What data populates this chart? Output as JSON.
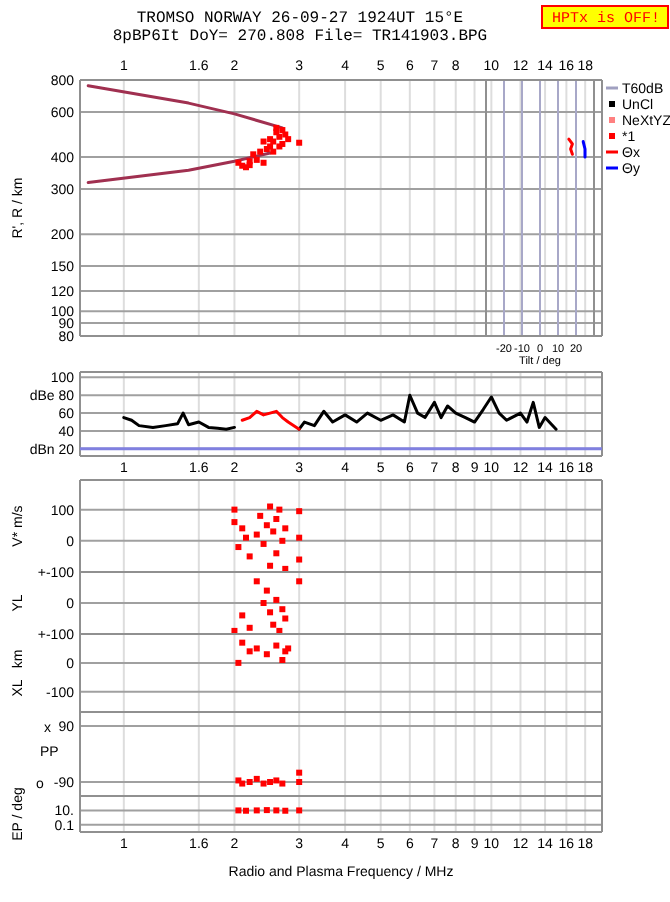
{
  "chart_data": [
    {
      "type": "scatter",
      "title": "TROMSO NORWAY   26-09-27 1924UT 15°E",
      "subtitle": "8pBP6It DoY= 270.808 File= TR141903.BPG",
      "ylabel": "R', R / km",
      "annotations": [
        "HPTx is OFF!"
      ],
      "log": "xy",
      "xlim": [
        0.76,
        20
      ],
      "ylim": [
        80,
        800
      ],
      "xticks": [
        1,
        1.6,
        2,
        3,
        4,
        5,
        6,
        7,
        8,
        {
          "value": 9,
          "label": null
        },
        10,
        12,
        14,
        16,
        18
      ],
      "yticks": [
        800,
        600,
        400,
        300,
        200,
        150,
        120,
        100,
        90,
        80
      ],
      "grid": true,
      "legend": "right",
      "series": [
        {
          "type": "line",
          "color": "#a03050",
          "x": [
            0.8,
            1.5,
            2.0,
            2.7
          ],
          "values": [
            760,
            650,
            590,
            520
          ]
        },
        {
          "type": "line",
          "color": "#a03050",
          "x": [
            0.8,
            1.5,
            2.0,
            2.5
          ],
          "values": [
            318,
            355,
            385,
            415
          ]
        },
        {
          "name": "T60dB",
          "type": "line",
          "color": "#a0a0c0"
        },
        {
          "name": "UnCl",
          "color": "#000000"
        },
        {
          "name": "NeXtYZ",
          "color": "#ff8080"
        },
        {
          "name": "*1",
          "color": "#ff0000",
          "marker": "square",
          "x": [
            2.05,
            2.1,
            2.15,
            2.2,
            2.25,
            2.3,
            2.35,
            2.4,
            2.45,
            2.5,
            2.5,
            2.55,
            2.6,
            2.6,
            2.65,
            2.7,
            2.7,
            2.75,
            2.4,
            2.55,
            2.65,
            2.2,
            3.0,
            2.8
          ],
          "values": [
            380,
            370,
            365,
            372,
            410,
            390,
            420,
            380,
            430,
            440,
            470,
            460,
            500,
            520,
            480,
            510,
            450,
            490,
            460,
            420,
            440,
            385,
            455,
            470
          ]
        }
      ]
    },
    {
      "type": "line",
      "xlabel": "Tilt / deg",
      "log": "y",
      "xlim": [
        -30,
        30
      ],
      "ylim": [
        80,
        800
      ],
      "xticks": [
        -20,
        -10,
        0,
        10,
        20
      ],
      "grid": "x",
      "tick_labels": "x",
      "series": [
        {
          "name": "Θx",
          "color": "#ff0000",
          "x": [
            16,
            18,
            17,
            18
          ],
          "values": [
            470,
            450,
            430,
            410
          ]
        },
        {
          "name": "Θy",
          "color": "#0000ff",
          "x": [
            25,
            25,
            24
          ],
          "values": [
            400,
            430,
            460
          ]
        }
      ]
    },
    {
      "type": "line",
      "log": "x",
      "xlim": [
        0.76,
        20
      ],
      "ylim": [
        12,
        106
      ],
      "xticks": [
        1,
        1.6,
        2,
        3,
        4,
        5,
        6,
        7,
        8,
        9,
        10,
        12,
        14,
        16,
        18
      ],
      "yticks": [
        100,
        {
          "value": 80,
          "label": "dBe 80"
        },
        60,
        40,
        {
          "value": 20,
          "label": "dBn 20"
        }
      ],
      "grid": true,
      "ref_lines": [
        {
          "axis": "y",
          "value": 20,
          "color": "#8080e0"
        }
      ],
      "series": [
        {
          "color": "#000000",
          "x": [
            1,
            1.05,
            1.1,
            1.2,
            1.3,
            1.4,
            1.45,
            1.5,
            1.6,
            1.7,
            1.8,
            1.9,
            2,
            2.2,
            2.4,
            2.6,
            2.8,
            3,
            3.1,
            3.3,
            3.5,
            3.7,
            4,
            4.3,
            4.6,
            5,
            5.4,
            5.8,
            6,
            6.3,
            6.6,
            7,
            7.3,
            7.6,
            8,
            8.5,
            9,
            9.5,
            10,
            10.5,
            11,
            12,
            12.5,
            13,
            13.5,
            14,
            15
          ],
          "values": [
            55,
            52,
            46,
            44,
            46,
            48,
            60,
            47,
            50,
            44,
            43,
            42,
            44,
            null,
            null,
            null,
            null,
            42,
            50,
            46,
            62,
            50,
            58,
            50,
            60,
            52,
            58,
            50,
            80,
            60,
            55,
            72,
            55,
            68,
            60,
            55,
            50,
            64,
            78,
            60,
            52,
            60,
            50,
            72,
            44,
            55,
            42
          ]
        },
        {
          "color": "#ff0000",
          "x": [
            2.1,
            2.2,
            2.3,
            2.4,
            2.5,
            2.6,
            2.7,
            2.8,
            3.0
          ],
          "values": [
            52,
            55,
            62,
            58,
            60,
            62,
            55,
            50,
            42
          ]
        }
      ]
    },
    {
      "type": "scatter",
      "ylabel": "V* m/s",
      "log": "x",
      "xlim": [
        0.76,
        20
      ],
      "ylim": [
        -100,
        195
      ],
      "xticks": [
        1,
        1.6,
        2,
        3,
        4,
        5,
        6,
        7,
        8,
        9,
        10,
        12,
        14,
        16,
        18
      ],
      "yticks": [
        100,
        0,
        {
          "value": -100,
          "label": "+-100"
        }
      ],
      "grid": true,
      "tick_labels": "y",
      "marker": "square",
      "series": [
        {
          "color": "#ff0000",
          "x": [
            2.0,
            2.0,
            2.05,
            2.1,
            2.15,
            2.2,
            2.3,
            2.35,
            2.4,
            2.45,
            2.5,
            2.5,
            2.55,
            2.6,
            2.6,
            2.65,
            2.7,
            2.75,
            2.75,
            3.0,
            3.0,
            3.0
          ],
          "values": [
            100,
            60,
            -20,
            40,
            10,
            -50,
            20,
            80,
            -10,
            50,
            110,
            -80,
            30,
            70,
            -40,
            100,
            0,
            40,
            -90,
            95,
            10,
            -60
          ]
        }
      ]
    },
    {
      "type": "scatter",
      "ylabel": "YL",
      "log": "x",
      "xlim": [
        0.76,
        20
      ],
      "ylim": [
        -100,
        100
      ],
      "xticks": [
        1,
        1.6,
        2,
        3,
        4,
        5,
        6,
        7,
        8,
        9,
        10,
        12,
        14,
        16,
        18
      ],
      "yticks": [
        {
          "value": 100,
          "label": null
        },
        0,
        {
          "value": -100,
          "label": "+-100"
        }
      ],
      "grid": true,
      "tick_labels": "y",
      "marker": "square",
      "series": [
        {
          "color": "#ff0000",
          "x": [
            2.0,
            2.1,
            2.2,
            2.3,
            2.4,
            2.45,
            2.5,
            2.55,
            2.6,
            2.65,
            2.7,
            2.75,
            3.0
          ],
          "values": [
            -90,
            -40,
            -80,
            70,
            0,
            40,
            -30,
            -70,
            10,
            -90,
            -20,
            -50,
            70
          ]
        }
      ]
    },
    {
      "type": "scatter",
      "ylabel": "XL   km",
      "log": "x",
      "xlim": [
        0.76,
        20
      ],
      "ylim": [
        -170,
        100
      ],
      "xticks": [
        1,
        1.6,
        2,
        3,
        4,
        5,
        6,
        7,
        8,
        9,
        10,
        12,
        14,
        16,
        18
      ],
      "yticks": [
        {
          "value": 100,
          "label": null
        },
        0,
        -100
      ],
      "grid": true,
      "tick_labels": "y",
      "marker": "square",
      "series": [
        {
          "color": "#ff0000",
          "x": [
            2.05,
            2.1,
            2.2,
            2.3,
            2.45,
            2.6,
            2.7,
            2.75,
            2.8
          ],
          "values": [
            0,
            70,
            40,
            50,
            30,
            60,
            10,
            40,
            50
          ]
        }
      ]
    },
    {
      "type": "scatter",
      "annotations": [
        "PP",
        "x",
        "o"
      ],
      "log": "x",
      "xlim": [
        0.76,
        20
      ],
      "ylim": [
        -135,
        135
      ],
      "xticks": [
        1,
        1.6,
        2,
        3,
        4,
        5,
        6,
        7,
        8,
        9,
        10,
        12,
        14,
        16,
        18
      ],
      "yticks": [
        90,
        -90
      ],
      "grid": true,
      "tick_labels": "y",
      "marker": "square",
      "series": [
        {
          "color": "#ff0000",
          "x": [
            2.05,
            2.1,
            2.2,
            2.3,
            2.4,
            2.5,
            2.6,
            2.7,
            3.0,
            3.0
          ],
          "values": [
            -85,
            -95,
            -90,
            -80,
            -95,
            -90,
            -85,
            -95,
            -90,
            -60
          ]
        }
      ]
    },
    {
      "type": "scatter",
      "xlabel": "Radio and Plasma Frequency / MHz",
      "ylabel": "EP / deg",
      "log": "xy",
      "xlim": [
        0.76,
        20
      ],
      "ylim": [
        0.01,
        1000
      ],
      "xticks": [
        1,
        1.6,
        2,
        3,
        4,
        5,
        6,
        7,
        8,
        9,
        10,
        12,
        14,
        16,
        18
      ],
      "yticks": [
        {
          "value": 10,
          "label": "10."
        },
        0.1
      ],
      "grid": true,
      "marker": "square",
      "series": [
        {
          "color": "#ff0000",
          "x": [
            2.05,
            2.15,
            2.3,
            2.45,
            2.6,
            2.75,
            3.0
          ],
          "values": [
            10,
            9,
            10,
            11,
            10,
            9,
            10
          ]
        }
      ]
    }
  ]
}
